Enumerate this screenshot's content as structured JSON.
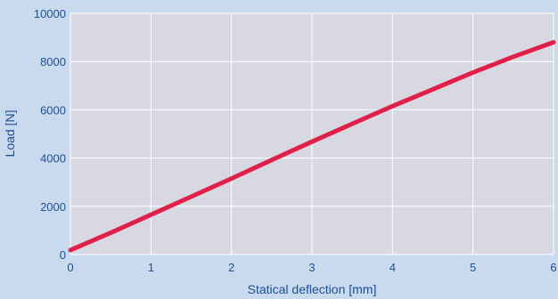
{
  "chart_data": {
    "type": "line",
    "title": "",
    "xlabel": "Statical deflection [mm]",
    "ylabel": "Load [N]",
    "xlim": [
      0,
      6
    ],
    "ylim": [
      0,
      10000
    ],
    "x_ticks": [
      "0",
      "1",
      "2",
      "3",
      "4",
      "5",
      "6"
    ],
    "y_ticks": [
      "0",
      "2000",
      "4000",
      "6000",
      "8000",
      "10000"
    ],
    "grid": true,
    "legend": "none",
    "series": [
      {
        "color": "#e0204a",
        "x": [
          0,
          0.5,
          1,
          1.5,
          2,
          2.5,
          3,
          3.5,
          4,
          4.5,
          5,
          5.5,
          6
        ],
        "y": [
          180,
          900,
          1650,
          2400,
          3150,
          3920,
          4680,
          5420,
          6150,
          6850,
          7550,
          8200,
          8800
        ]
      }
    ]
  },
  "colors": {
    "page_background": "#c9daef",
    "plot_background": "#d8d8e2",
    "grid": "#ffffff",
    "text": "#1f4f8f"
  }
}
